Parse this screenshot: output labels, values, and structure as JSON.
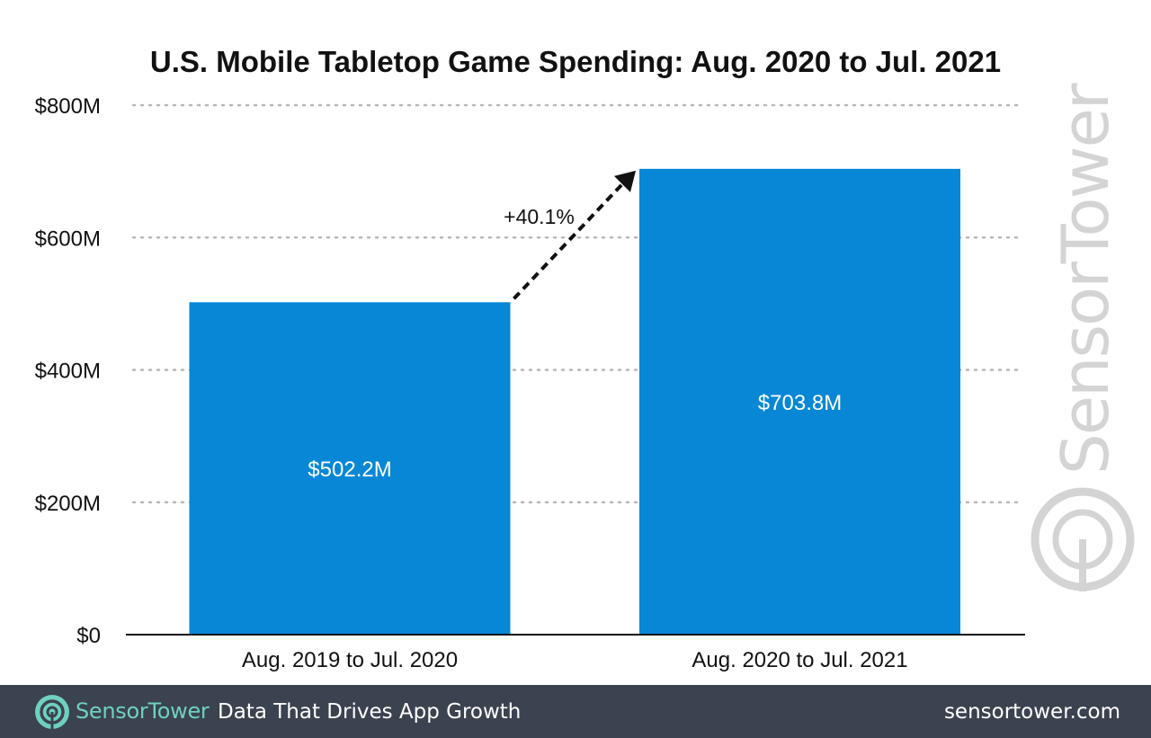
{
  "chart_data": {
    "type": "bar",
    "title": "U.S. Mobile Tabletop Game Spending: Aug. 2020 to Jul. 2021",
    "categories": [
      "Aug. 2019 to Jul. 2020",
      "Aug. 2020 to Jul. 2021"
    ],
    "values": [
      502.2,
      703.8
    ],
    "value_labels": [
      "$502.2M",
      "$703.8M"
    ],
    "ylim": [
      0,
      800
    ],
    "yticks": [
      0,
      200,
      400,
      600,
      800
    ],
    "ytick_labels": [
      "$0",
      "$200M",
      "$400M",
      "$600M",
      "$800M"
    ],
    "xlabel": "",
    "ylabel": "",
    "grid": true,
    "bar_color": "#0787d6",
    "annotation": {
      "text": "+40.1%",
      "from": "Aug. 2019 to Jul. 2020",
      "to": "Aug. 2020 to Jul. 2021"
    }
  },
  "watermark": "SensorTower",
  "footer": {
    "brand_sensor": "Sensor",
    "brand_tower": "Tower",
    "tagline": "Data That Drives App Growth",
    "url": "sensortower.com"
  },
  "colors": {
    "footer_bg": "#3b4250",
    "brand_teal": "#6fd0c0",
    "bar": "#0787d6"
  }
}
